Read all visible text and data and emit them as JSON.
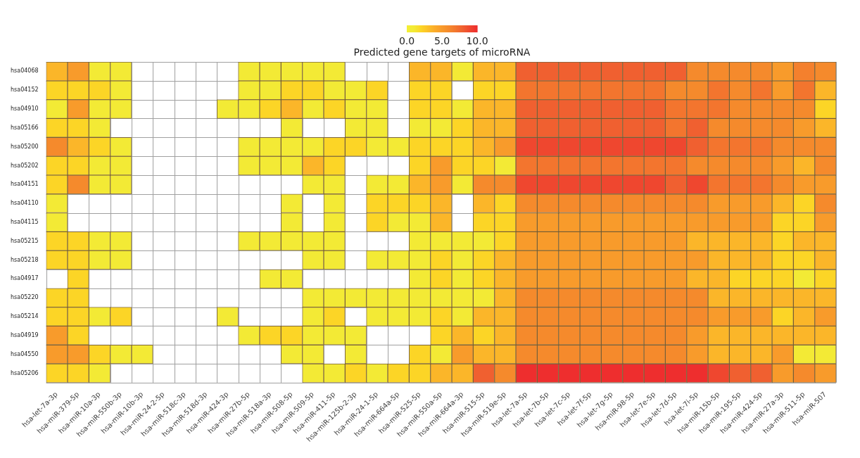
{
  "chart_data": {
    "type": "heatmap",
    "clabel": "Predicted gene targets of microRNA",
    "clim": [
      0,
      10
    ],
    "cticks": [
      {
        "value": 0,
        "label": "0.0"
      },
      {
        "value": 5,
        "label": "5.0"
      },
      {
        "value": 10,
        "label": "10.0"
      }
    ],
    "categories": [
      "hsa-let-7a-3p",
      "hsa-miR-379-5p",
      "hsa-miR-10a-3p",
      "hsa-miR-550b-3p",
      "hsa-miR-10b-3p",
      "hsa-miR-24-2-5p",
      "hsa-miR-518c-3p",
      "hsa-miR-518d-3p",
      "hsa-miR-424-3p",
      "hsa-miR-27b-5p",
      "hsa-miR-518a-3p",
      "hsa-miR-508-5p",
      "hsa-miR-509-5p",
      "hsa-miR-411-5p",
      "hsa-miR-125b-2-3p",
      "hsa-miR-24-1-5p",
      "hsa-miR-664a-5p",
      "hsa-miR-525-5p",
      "hsa-miR-550a-5p",
      "hsa-miR-664a-3p",
      "hsa-miR-515-5p",
      "hsa-miR-519e-5p",
      "hsa-let-7a-5p",
      "hsa-let-7b-5p",
      "hsa-let-7c-5p",
      "hsa-let-7f-5p",
      "hsa-let-7g-5p",
      "hsa-miR-98-5p",
      "hsa-let-7e-5p",
      "hsa-let-7d-5p",
      "hsa-let-7i-5p",
      "hsa-miR-15b-5p",
      "hsa-miR-195-5p",
      "hsa-miR-424-5p",
      "hsa-miR-27a-3p",
      "hsa-miR-511-5p",
      "hsa-miR-507"
    ],
    "y_categories": [
      "hsa04068",
      "hsa04152",
      "hsa04910",
      "hsa05166",
      "hsa05200",
      "hsa05202",
      "hsa04151",
      "hsa04110",
      "hsa04115",
      "hsa05215",
      "hsa05218",
      "hsa04917",
      "hsa05220",
      "hsa05214",
      "hsa04919",
      "hsa04550",
      "hsa05206"
    ],
    "cells": [
      [
        3.5,
        5,
        1,
        1,
        null,
        null,
        null,
        null,
        null,
        1,
        1,
        1,
        1,
        1,
        null,
        null,
        null,
        3.5,
        3.5,
        1,
        3.5,
        3.5,
        8,
        8,
        8,
        8,
        8,
        8,
        8,
        8,
        6,
        6,
        6,
        6,
        5,
        6.5,
        6
      ],
      [
        2,
        2,
        2,
        1,
        null,
        null,
        null,
        null,
        null,
        1,
        1,
        2,
        2,
        1,
        1,
        2,
        null,
        2,
        2,
        null,
        2,
        2,
        7,
        7,
        7,
        7,
        7,
        7,
        7,
        6,
        6,
        7,
        6,
        7,
        5,
        7,
        3.5
      ],
      [
        1,
        5,
        1,
        1,
        null,
        null,
        null,
        null,
        1,
        1,
        2,
        3.5,
        1,
        2,
        1,
        1,
        null,
        2,
        2,
        1,
        3.5,
        3.5,
        8,
        8,
        8,
        8,
        8,
        8,
        8,
        7,
        7,
        7,
        6,
        6,
        6,
        6,
        2
      ],
      [
        2,
        2,
        1,
        null,
        null,
        null,
        null,
        null,
        null,
        null,
        null,
        1,
        null,
        null,
        1,
        1,
        null,
        1,
        1,
        2,
        3.5,
        3.5,
        8,
        8,
        8,
        8,
        8,
        8,
        8,
        7,
        8,
        6,
        6,
        6,
        6,
        5,
        3.5
      ],
      [
        6,
        3.5,
        2,
        1,
        null,
        null,
        null,
        null,
        null,
        1,
        1,
        1,
        1,
        2,
        2,
        1,
        1,
        2,
        2,
        2,
        3.5,
        5,
        9,
        9,
        9,
        9,
        9,
        9,
        9,
        9,
        8,
        7,
        7,
        7,
        6,
        6,
        6
      ],
      [
        2,
        2,
        1,
        1,
        null,
        null,
        null,
        null,
        null,
        1,
        1,
        1,
        3.5,
        2,
        null,
        null,
        null,
        2,
        5,
        2,
        2,
        1,
        7,
        7,
        7,
        7,
        7,
        7,
        7,
        7,
        6,
        6,
        6,
        6,
        5,
        3.5,
        6
      ],
      [
        2,
        6,
        1,
        1,
        null,
        null,
        null,
        null,
        null,
        null,
        null,
        null,
        1,
        1,
        null,
        1,
        1,
        3.5,
        5,
        1,
        6,
        6,
        9,
        9,
        9,
        9,
        9,
        9,
        9,
        8,
        9,
        7,
        7,
        7,
        6,
        5,
        5
      ],
      [
        1,
        null,
        null,
        null,
        null,
        null,
        null,
        null,
        null,
        null,
        null,
        1,
        null,
        1,
        null,
        2,
        2,
        2,
        3.5,
        null,
        3.5,
        2,
        6,
        6,
        6,
        6,
        6,
        6,
        6,
        6,
        6,
        5,
        5,
        5,
        3.5,
        2,
        6
      ],
      [
        1,
        null,
        null,
        null,
        null,
        null,
        null,
        null,
        null,
        null,
        null,
        1,
        null,
        1,
        null,
        2,
        1,
        1,
        3.5,
        null,
        2,
        2,
        5,
        5,
        5,
        5,
        5,
        5,
        5,
        5,
        5,
        5,
        5,
        5,
        2,
        2,
        5
      ],
      [
        2,
        2,
        1,
        1,
        null,
        null,
        null,
        null,
        null,
        1,
        1,
        1,
        1,
        1,
        null,
        null,
        null,
        1,
        1,
        1,
        1,
        2,
        5,
        5,
        5,
        5,
        5,
        5,
        5,
        5,
        3.5,
        3.5,
        3.5,
        3.5,
        2,
        3.5,
        3.5
      ],
      [
        2,
        2,
        1,
        1,
        null,
        null,
        null,
        null,
        null,
        null,
        null,
        null,
        1,
        1,
        null,
        1,
        1,
        1,
        2,
        1,
        2,
        3.5,
        5,
        5,
        5,
        5,
        5,
        5,
        5,
        5,
        5,
        3.5,
        3.5,
        3.5,
        2,
        2,
        3.5
      ],
      [
        null,
        2,
        null,
        null,
        null,
        null,
        null,
        null,
        null,
        null,
        1,
        1,
        null,
        null,
        null,
        null,
        null,
        1,
        2,
        1,
        2,
        3.5,
        5,
        5,
        5,
        5,
        5,
        5,
        5,
        5,
        3.5,
        3.5,
        2,
        2,
        2,
        1,
        2
      ],
      [
        2,
        2,
        null,
        null,
        null,
        null,
        null,
        null,
        null,
        null,
        null,
        null,
        1,
        1,
        1,
        1,
        1,
        1,
        1,
        1,
        1,
        3.5,
        6,
        6,
        6,
        6,
        6,
        6,
        6,
        6,
        6,
        3.5,
        3.5,
        3.5,
        3.5,
        3.5,
        3.5
      ],
      [
        2,
        2,
        1,
        2,
        null,
        null,
        null,
        null,
        1,
        null,
        null,
        null,
        1,
        2,
        null,
        1,
        1,
        1,
        2,
        1,
        3.5,
        3.5,
        6,
        6,
        6,
        6,
        6,
        6,
        6,
        6,
        6,
        5,
        5,
        5,
        2,
        3.5,
        5
      ],
      [
        5,
        2,
        null,
        null,
        null,
        null,
        null,
        null,
        null,
        1,
        2,
        2,
        1,
        1,
        1,
        null,
        null,
        null,
        2,
        3.5,
        2,
        3.5,
        6,
        6,
        6,
        6,
        6,
        6,
        6,
        6,
        5,
        3.5,
        3.5,
        3.5,
        3.5,
        3.5,
        3.5
      ],
      [
        5,
        5,
        2,
        1,
        1,
        null,
        null,
        null,
        null,
        null,
        null,
        1,
        1,
        null,
        1,
        null,
        null,
        2,
        1,
        5,
        3.5,
        3.5,
        6,
        6,
        6,
        6,
        6,
        6,
        6,
        6,
        5,
        3.5,
        3.5,
        3.5,
        5,
        1,
        1
      ],
      [
        2,
        2,
        1,
        null,
        null,
        null,
        null,
        null,
        null,
        null,
        null,
        null,
        1,
        1,
        2,
        1,
        2,
        2,
        3.5,
        3.5,
        8,
        6,
        10,
        10,
        10,
        10,
        10,
        10,
        10,
        10,
        10,
        9,
        8,
        8,
        5,
        6,
        5
      ]
    ]
  }
}
